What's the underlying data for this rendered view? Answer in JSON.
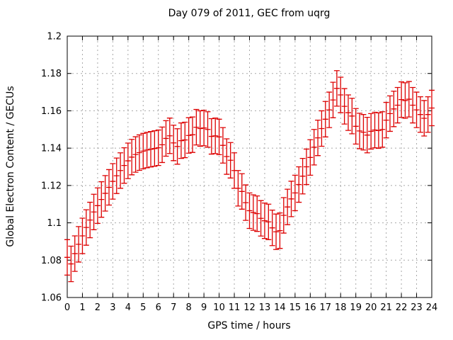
{
  "chart": {
    "title": "Day 079 of 2011, GEC from uqrg",
    "xlabel": "GPS time / hours",
    "ylabel": "Global Electron Content / GECUs"
  },
  "chart_data": {
    "type": "scatter",
    "style": "yerrorbars",
    "title": "Day 079 of 2011, GEC from uqrg",
    "xlabel": "GPS time / hours",
    "ylabel": "Global Electron Content / GECUs",
    "xlim": [
      0,
      24
    ],
    "ylim": [
      1.06,
      1.2
    ],
    "grid": true,
    "legend": "none",
    "series_color": "#dd0000",
    "grid_color": "#a8a8a8",
    "axis_color": "#000000",
    "background_color": "#ffffff",
    "xticks": [
      0,
      1,
      2,
      3,
      4,
      5,
      6,
      7,
      8,
      9,
      10,
      11,
      12,
      13,
      14,
      15,
      16,
      17,
      18,
      19,
      20,
      21,
      22,
      23,
      24
    ],
    "xtick_labels": [
      "0",
      "1",
      "2",
      "3",
      "4",
      "5",
      "6",
      "7",
      "8",
      "9",
      "10",
      "11",
      "12",
      "13",
      "14",
      "15",
      "16",
      "17",
      "18",
      "19",
      "20",
      "21",
      "22",
      "23",
      "24"
    ],
    "yticks": [
      1.06,
      1.08,
      1.1,
      1.12,
      1.14,
      1.16,
      1.18,
      1.2
    ],
    "ytick_labels": [
      "1.06",
      "1.08",
      "1.1",
      "1.12",
      "1.14",
      "1.16",
      "1.18",
      "1.2"
    ],
    "yerr": 0.0095,
    "x": [
      0,
      0.25,
      0.5,
      0.75,
      1,
      1.25,
      1.5,
      1.75,
      2,
      2.25,
      2.5,
      2.75,
      3,
      3.25,
      3.5,
      3.75,
      4,
      4.25,
      4.5,
      4.75,
      5,
      5.25,
      5.5,
      5.75,
      6,
      6.25,
      6.5,
      6.75,
      7,
      7.25,
      7.5,
      7.75,
      8,
      8.25,
      8.5,
      8.75,
      9,
      9.25,
      9.5,
      9.75,
      10,
      10.25,
      10.5,
      10.75,
      11,
      11.25,
      11.5,
      11.75,
      12,
      12.25,
      12.5,
      12.75,
      13,
      13.25,
      13.5,
      13.75,
      14,
      14.25,
      14.5,
      14.75,
      15,
      15.25,
      15.5,
      15.75,
      16,
      16.25,
      16.5,
      16.75,
      17,
      17.25,
      17.5,
      17.75,
      18,
      18.25,
      18.5,
      18.75,
      19,
      19.25,
      19.5,
      19.75,
      20,
      20.25,
      20.5,
      20.75,
      21,
      21.25,
      21.5,
      21.75,
      22,
      22.25,
      22.5,
      22.75,
      23,
      23.25,
      23.5,
      23.75,
      24
    ],
    "y": [
      1.0815,
      1.078,
      1.0835,
      1.0885,
      1.093,
      1.0975,
      1.1015,
      1.1058,
      1.1092,
      1.1125,
      1.1158,
      1.119,
      1.1222,
      1.1252,
      1.128,
      1.1307,
      1.1332,
      1.1352,
      1.1366,
      1.1376,
      1.1384,
      1.139,
      1.1394,
      1.1398,
      1.1402,
      1.1418,
      1.1452,
      1.1466,
      1.1428,
      1.1409,
      1.144,
      1.1444,
      1.1468,
      1.1472,
      1.1512,
      1.1505,
      1.1508,
      1.15,
      1.1463,
      1.1466,
      1.146,
      1.1415,
      1.1355,
      1.1335,
      1.128,
      1.1185,
      1.1168,
      1.1108,
      1.1065,
      1.1055,
      1.1049,
      1.1024,
      1.1011,
      1.1005,
      1.0973,
      1.0952,
      1.0958,
      1.104,
      1.1085,
      1.1128,
      1.116,
      1.1205,
      1.125,
      1.13,
      1.135,
      1.1405,
      1.1455,
      1.1505,
      1.1555,
      1.1605,
      1.1658,
      1.172,
      1.1685,
      1.1624,
      1.159,
      1.1572,
      1.1517,
      1.1492,
      1.1485,
      1.147,
      1.149,
      1.1497,
      1.1494,
      1.15,
      1.155,
      1.1585,
      1.161,
      1.163,
      1.166,
      1.1655,
      1.1662,
      1.163,
      1.1605,
      1.158,
      1.156,
      1.158,
      1.1615
    ]
  }
}
